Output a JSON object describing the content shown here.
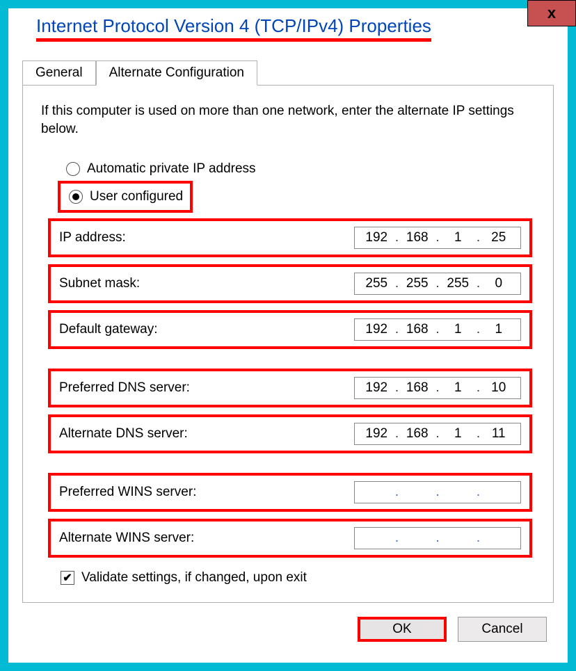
{
  "colors": {
    "accent_bg": "#01bbd4",
    "highlight": "#ff0000",
    "title_color": "#0046b8",
    "close_bg": "#c75050"
  },
  "window": {
    "title": "Internet Protocol Version 4 (TCP/IPv4) Properties",
    "close_glyph": "x"
  },
  "tabs": {
    "general": "General",
    "alternate": "Alternate Configuration",
    "active": "alternate"
  },
  "intro_text": "If this computer is used on more than one network, enter the alternate IP settings below.",
  "radios": {
    "auto": {
      "label": "Automatic private IP address",
      "selected": false
    },
    "user": {
      "label": "User configured",
      "selected": true
    }
  },
  "fields": {
    "ip": {
      "label": "IP address:",
      "octets": [
        "192",
        "168",
        "1",
        "25"
      ]
    },
    "subnet": {
      "label": "Subnet mask:",
      "octets": [
        "255",
        "255",
        "255",
        "0"
      ]
    },
    "gateway": {
      "label": "Default gateway:",
      "octets": [
        "192",
        "168",
        "1",
        "1"
      ]
    },
    "dns1": {
      "label": "Preferred DNS server:",
      "octets": [
        "192",
        "168",
        "1",
        "10"
      ]
    },
    "dns2": {
      "label": "Alternate DNS server:",
      "octets": [
        "192",
        "168",
        "1",
        "11"
      ]
    },
    "wins1": {
      "label": "Preferred WINS server:",
      "octets": [
        "",
        "",
        "",
        ""
      ]
    },
    "wins2": {
      "label": "Alternate WINS server:",
      "octets": [
        "",
        "",
        "",
        ""
      ]
    }
  },
  "validate_checkbox": {
    "label": "Validate settings, if changed, upon exit",
    "checked": true,
    "glyph": "✔"
  },
  "buttons": {
    "ok": "OK",
    "cancel": "Cancel"
  }
}
